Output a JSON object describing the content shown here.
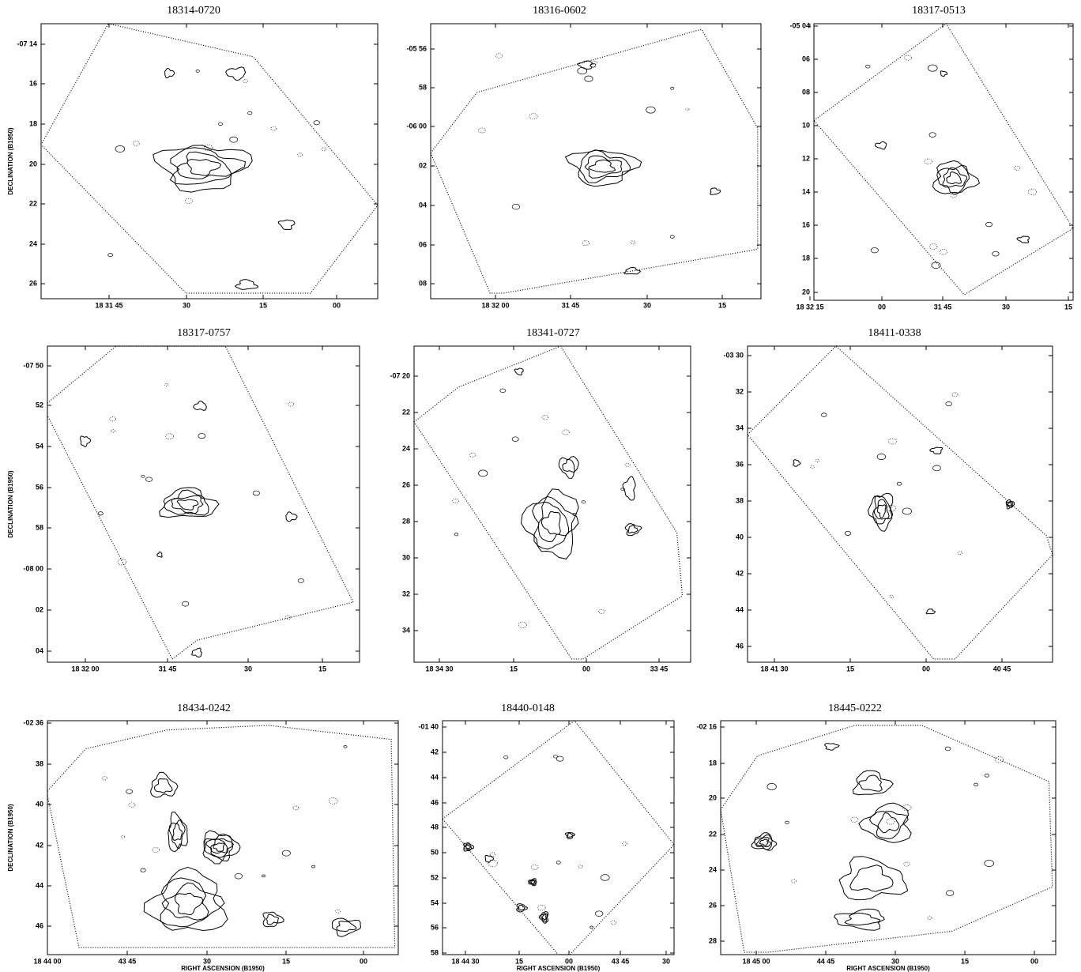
{
  "panels": [
    {
      "title": "18314-0720",
      "ylabel": "DECLINATION (B1950)",
      "yticks": [
        "-07 14",
        "16",
        "18",
        "20",
        "22",
        "24",
        "26"
      ],
      "xticks": [
        "18 31 45",
        "30",
        "15",
        "00"
      ]
    },
    {
      "title": "18316-0602",
      "yticks": [
        "-05 56",
        "58",
        "-06 00",
        "02",
        "04",
        "06",
        "08"
      ],
      "xticks": [
        "18 32 00",
        "31 45",
        "30",
        "15"
      ]
    },
    {
      "title": "18317-0513",
      "yticks": [
        "-05 04",
        "06",
        "08",
        "10",
        "12",
        "14",
        "16",
        "18",
        "20"
      ],
      "xticks": [
        "18 32 15",
        "00",
        "31 45",
        "30",
        "15"
      ]
    },
    {
      "title": "18317-0757",
      "ylabel": "DECLINATION (B1950)",
      "yticks": [
        "-07 50",
        "52",
        "54",
        "56",
        "58",
        "-08 00",
        "02",
        "04"
      ],
      "xticks": [
        "18 32 00",
        "31 45",
        "30",
        "15"
      ]
    },
    {
      "title": "18341-0727",
      "yticks": [
        "-07 20",
        "22",
        "24",
        "26",
        "28",
        "30",
        "32",
        "34"
      ],
      "xticks": [
        "18 34 30",
        "15",
        "00",
        "33 45"
      ]
    },
    {
      "title": "18411-0338",
      "yticks": [
        "-03 30",
        "32",
        "34",
        "36",
        "38",
        "40",
        "42",
        "44",
        "46"
      ],
      "xticks": [
        "18 41 30",
        "15",
        "00",
        "40 45"
      ]
    },
    {
      "title": "18434-0242",
      "ylabel": "DECLINATION (B1950)",
      "xlabel": "RIGHT ASCENSION (B1950)",
      "yticks": [
        "-02 36",
        "38",
        "40",
        "42",
        "44",
        "46"
      ],
      "xticks": [
        "18 44 00",
        "43 45",
        "30",
        "15",
        "00"
      ]
    },
    {
      "title": "18440-0148",
      "xlabel": "RIGHT ASCENSION (B1950)",
      "yticks": [
        "-01 40",
        "42",
        "44",
        "46",
        "48",
        "50",
        "52",
        "54",
        "56",
        "58"
      ],
      "xticks": [
        "18 44 30",
        "15",
        "00",
        "43 45",
        "30"
      ]
    },
    {
      "title": "18445-0222",
      "xlabel": "RIGHT ASCENSION (B1950)",
      "yticks": [
        "-02 16",
        "18",
        "20",
        "22",
        "24",
        "26",
        "28"
      ],
      "xticks": [
        "18 45 00",
        "44 45",
        "30",
        "15",
        "00"
      ]
    }
  ]
}
